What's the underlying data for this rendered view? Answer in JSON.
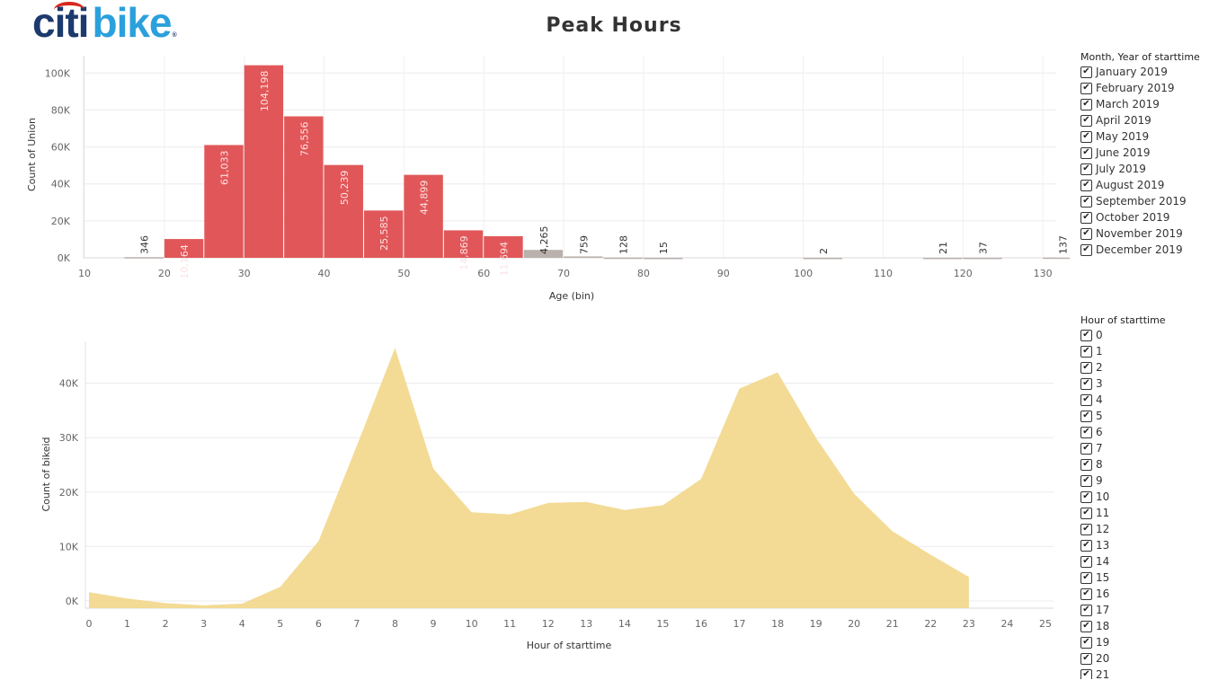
{
  "logo": {
    "text_a": "citi",
    "text_b": "bike",
    "mark": "®"
  },
  "title": "Peak Hours",
  "chart_data": [
    {
      "type": "bar",
      "xlabel": "Age (bin)",
      "ylabel": "Count of Union",
      "bin_width": 5,
      "xlim": [
        10,
        140
      ],
      "xticks": [
        10,
        20,
        30,
        40,
        50,
        60,
        70,
        80,
        90,
        100,
        110,
        120,
        130,
        140
      ],
      "ylim": [
        0,
        105000
      ],
      "yticks": [
        0,
        20000,
        40000,
        60000,
        80000,
        100000
      ],
      "ytick_labels": [
        "0K",
        "20K",
        "40K",
        "60K",
        "80K",
        "100K"
      ],
      "grid": true,
      "bins": [
        {
          "x": 15,
          "value": 346,
          "label": "346",
          "color": "#bab0ac"
        },
        {
          "x": 20,
          "value": 10164,
          "label": "10,164",
          "color": "#e15759"
        },
        {
          "x": 25,
          "value": 61033,
          "label": "61,033",
          "color": "#e15759"
        },
        {
          "x": 30,
          "value": 104198,
          "label": "104,198",
          "color": "#e15759"
        },
        {
          "x": 35,
          "value": 76556,
          "label": "76,556",
          "color": "#e15759"
        },
        {
          "x": 40,
          "value": 50239,
          "label": "50,239",
          "color": "#e15759"
        },
        {
          "x": 45,
          "value": 25585,
          "label": "25,585",
          "color": "#e15759"
        },
        {
          "x": 50,
          "value": 44899,
          "label": "44,899",
          "color": "#e15759"
        },
        {
          "x": 55,
          "value": 14869,
          "label": "14,869",
          "color": "#e15759"
        },
        {
          "x": 60,
          "value": 11694,
          "label": "11,694",
          "color": "#e15759"
        },
        {
          "x": 65,
          "value": 4265,
          "label": "4,265",
          "color": "#bab0ac"
        },
        {
          "x": 70,
          "value": 759,
          "label": "759",
          "color": "#bab0ac"
        },
        {
          "x": 75,
          "value": 128,
          "label": "128",
          "color": "#bab0ac"
        },
        {
          "x": 80,
          "value": 15,
          "label": "15",
          "color": "#bab0ac"
        },
        {
          "x": 100,
          "value": 2,
          "label": "2",
          "color": "#bab0ac"
        },
        {
          "x": 115,
          "value": 21,
          "label": "21",
          "color": "#bab0ac"
        },
        {
          "x": 120,
          "value": 37,
          "label": "37",
          "color": "#bab0ac"
        },
        {
          "x": 130,
          "value": 137,
          "label": "137",
          "color": "#bab0ac"
        }
      ]
    },
    {
      "type": "area",
      "xlabel": "Hour of starttime",
      "ylabel": "Count of bikeid",
      "xlim": [
        0,
        25
      ],
      "xticks": [
        0,
        1,
        2,
        3,
        4,
        5,
        6,
        7,
        8,
        9,
        10,
        11,
        12,
        13,
        14,
        15,
        16,
        17,
        18,
        19,
        20,
        21,
        22,
        23,
        24,
        25
      ],
      "ylim": [
        0,
        47000
      ],
      "yticks": [
        0,
        10000,
        20000,
        30000,
        40000
      ],
      "ytick_labels": [
        "0K",
        "10K",
        "20K",
        "30K",
        "40K"
      ],
      "grid": true,
      "color": "#f2d78a",
      "x": [
        0,
        1,
        2,
        3,
        4,
        5,
        6,
        7,
        8,
        9,
        10,
        11,
        12,
        13,
        14,
        15,
        16,
        17,
        18,
        19,
        20,
        21,
        22,
        23
      ],
      "values": [
        1600,
        450,
        -400,
        -800,
        -500,
        2600,
        11000,
        28500,
        46500,
        24300,
        16300,
        15900,
        18000,
        18200,
        16700,
        17600,
        22400,
        39000,
        42000,
        30000,
        19700,
        12800,
        8500,
        4400
      ]
    }
  ],
  "filters": {
    "month": {
      "title": "Month, Year of starttime",
      "check": "✔",
      "items": [
        "January 2019",
        "February 2019",
        "March 2019",
        "April 2019",
        "May 2019",
        "June 2019",
        "July 2019",
        "August 2019",
        "September 2019",
        "October 2019",
        "November 2019",
        "December 2019"
      ]
    },
    "hour": {
      "title": "Hour of starttime",
      "check": "✔",
      "items": [
        "0",
        "1",
        "2",
        "3",
        "4",
        "5",
        "6",
        "7",
        "8",
        "9",
        "10",
        "11",
        "12",
        "13",
        "14",
        "15",
        "16",
        "17",
        "18",
        "19",
        "20",
        "21"
      ]
    }
  }
}
